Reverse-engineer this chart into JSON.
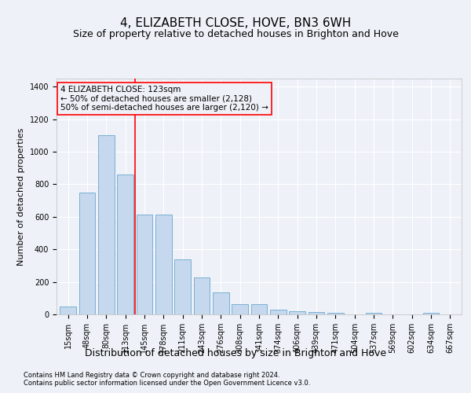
{
  "title": "4, ELIZABETH CLOSE, HOVE, BN3 6WH",
  "subtitle": "Size of property relative to detached houses in Brighton and Hove",
  "xlabel": "Distribution of detached houses by size in Brighton and Hove",
  "ylabel": "Number of detached properties",
  "footnote1": "Contains HM Land Registry data © Crown copyright and database right 2024.",
  "footnote2": "Contains public sector information licensed under the Open Government Licence v3.0.",
  "categories": [
    "15sqm",
    "48sqm",
    "80sqm",
    "113sqm",
    "145sqm",
    "178sqm",
    "211sqm",
    "243sqm",
    "276sqm",
    "308sqm",
    "341sqm",
    "374sqm",
    "406sqm",
    "439sqm",
    "471sqm",
    "504sqm",
    "537sqm",
    "569sqm",
    "602sqm",
    "634sqm",
    "667sqm"
  ],
  "bar_heights": [
    50,
    750,
    1100,
    860,
    615,
    615,
    340,
    225,
    135,
    65,
    65,
    30,
    20,
    15,
    10,
    0,
    10,
    0,
    0,
    10,
    0
  ],
  "bar_color": "#c5d8ed",
  "bar_edge_color": "#7aafd4",
  "vline_x": 3.5,
  "vline_color": "red",
  "annotation_text": "4 ELIZABETH CLOSE: 123sqm\n← 50% of detached houses are smaller (2,128)\n50% of semi-detached houses are larger (2,120) →",
  "annotation_box_color": "red",
  "ylim": [
    0,
    1450
  ],
  "yticks": [
    0,
    200,
    400,
    600,
    800,
    1000,
    1200,
    1400
  ],
  "bg_color": "#eef2f8",
  "grid_color": "white",
  "title_fontsize": 11,
  "subtitle_fontsize": 9,
  "ylabel_fontsize": 8,
  "xlabel_fontsize": 9,
  "tick_fontsize": 7,
  "footnote_fontsize": 6
}
